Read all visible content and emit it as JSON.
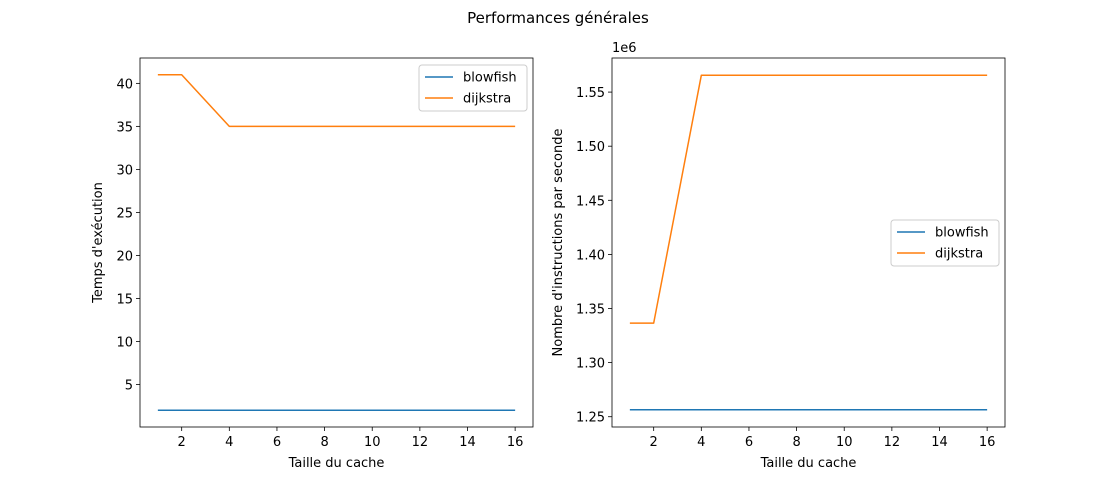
{
  "figure": {
    "title": "Performances générales"
  },
  "colors": {
    "blowfish": "#1f77b4",
    "dijkstra": "#ff7f0e"
  },
  "chart_data": [
    {
      "type": "line",
      "title": "",
      "xlabel": "Taille du cache",
      "ylabel": "Temps d'exécution",
      "x": [
        1,
        2,
        4,
        8,
        16
      ],
      "xlim": [
        0.25,
        16.75
      ],
      "ylim": [
        0.05,
        42.95
      ],
      "xticks": [
        2,
        4,
        6,
        8,
        10,
        12,
        14,
        16
      ],
      "xtick_labels": [
        "2",
        "4",
        "6",
        "8",
        "10",
        "12",
        "14",
        "16"
      ],
      "yticks": [
        5,
        10,
        15,
        20,
        25,
        30,
        35,
        40
      ],
      "ytick_labels": [
        "5",
        "10",
        "15",
        "20",
        "25",
        "30",
        "35",
        "40"
      ],
      "scale_label": "",
      "legend": "upper right",
      "grid": false,
      "series": [
        {
          "name": "blowfish",
          "values": [
            2,
            2,
            2,
            2,
            2
          ]
        },
        {
          "name": "dijkstra",
          "values": [
            41,
            41,
            35,
            35,
            35
          ]
        }
      ]
    },
    {
      "type": "line",
      "title": "",
      "xlabel": "Taille du cache",
      "ylabel": "Nombre d'instructions par seconde",
      "x": [
        1,
        2,
        4,
        8,
        16
      ],
      "xlim": [
        0.25,
        16.75
      ],
      "ylim": [
        1.2405,
        1.5815
      ],
      "xticks": [
        2,
        4,
        6,
        8,
        10,
        12,
        14,
        16
      ],
      "xtick_labels": [
        "2",
        "4",
        "6",
        "8",
        "10",
        "12",
        "14",
        "16"
      ],
      "yticks": [
        1.25,
        1.3,
        1.35,
        1.4,
        1.45,
        1.5,
        1.55
      ],
      "ytick_labels": [
        "1.25",
        "1.30",
        "1.35",
        "1.40",
        "1.45",
        "1.50",
        "1.55"
      ],
      "scale_label": "1e6",
      "legend": "center right",
      "grid": false,
      "series": [
        {
          "name": "blowfish",
          "values": [
            1.2565,
            1.2565,
            1.2565,
            1.2565,
            1.2565
          ]
        },
        {
          "name": "dijkstra",
          "values": [
            1.3365,
            1.3365,
            1.5655,
            1.5655,
            1.5655
          ]
        }
      ]
    }
  ]
}
